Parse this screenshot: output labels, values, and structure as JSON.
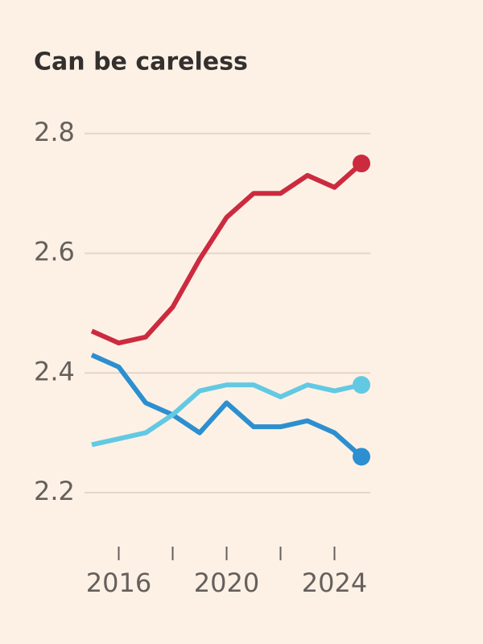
{
  "chart_data": {
    "type": "line",
    "title": "Can be careless",
    "x": [
      2015,
      2016,
      2017,
      2018,
      2019,
      2020,
      2021,
      2022,
      2023,
      2024,
      2025
    ],
    "series": [
      {
        "color": "#cc2b3f",
        "values": [
          2.47,
          2.45,
          2.46,
          2.51,
          2.59,
          2.66,
          2.7,
          2.7,
          2.73,
          2.71,
          2.75
        ]
      },
      {
        "color": "#2c8fd0",
        "values": [
          2.43,
          2.41,
          2.35,
          2.33,
          2.3,
          2.35,
          2.31,
          2.31,
          2.32,
          2.3,
          2.26
        ]
      },
      {
        "color": "#63c9e3",
        "values": [
          2.28,
          2.29,
          2.3,
          2.33,
          2.37,
          2.38,
          2.38,
          2.36,
          2.38,
          2.37,
          2.38
        ]
      }
    ],
    "xlim": [
      2015,
      2025
    ],
    "xticks": [
      2016,
      {
        "value": 2018,
        "label": null
      },
      2020,
      {
        "value": 2022,
        "label": null
      },
      2024
    ],
    "ylim": [
      2.13,
      2.82
    ],
    "yticks": [
      2.2,
      2.4,
      2.6,
      2.8
    ],
    "grid": true,
    "end_markers": true
  }
}
